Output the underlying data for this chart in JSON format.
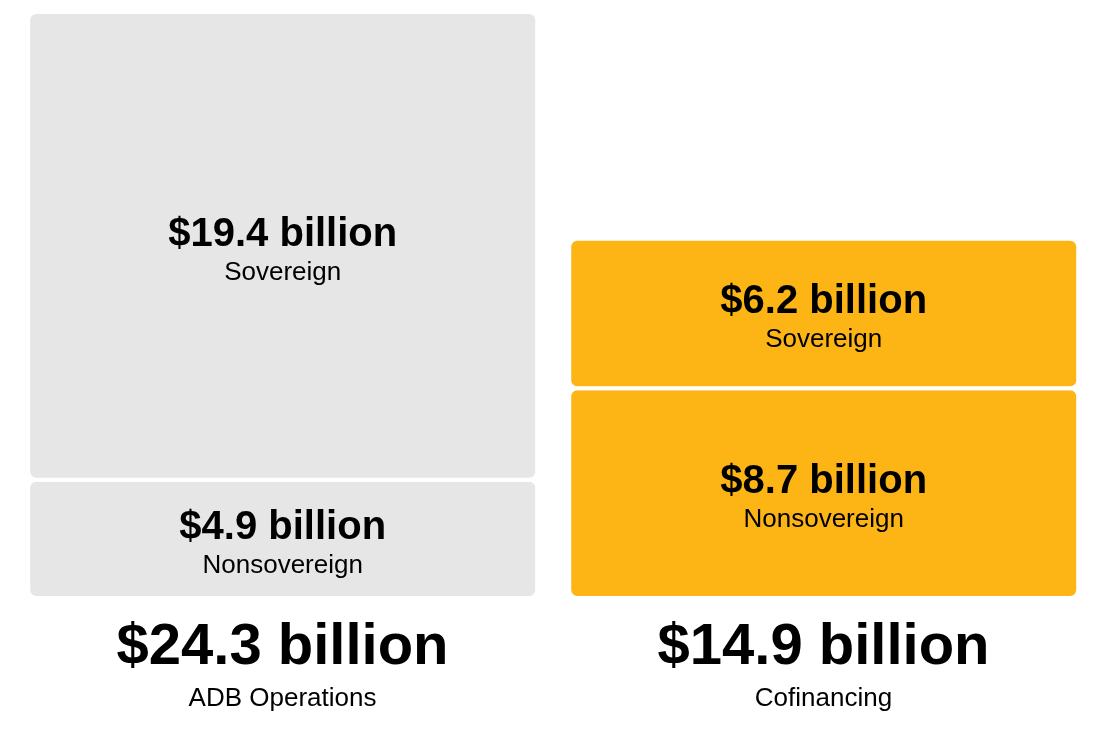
{
  "chart_data": {
    "type": "bar",
    "stacked": true,
    "categories": [
      "ADB Operations",
      "Cofinancing"
    ],
    "series": [
      {
        "name": "Nonsovereign",
        "colors": [
          "#e6e6e6",
          "#fdb515"
        ],
        "values": [
          4.9,
          8.7
        ],
        "value_labels": [
          "$4.9 billion",
          "$8.7 billion"
        ]
      },
      {
        "name": "Sovereign",
        "colors": [
          "#e6e6e6",
          "#fdb515"
        ],
        "values": [
          19.4,
          6.2
        ],
        "value_labels": [
          "$19.4 billion",
          "$6.2 billion"
        ]
      }
    ],
    "totals": [
      "$24.3 billion",
      "$14.9 billion"
    ]
  }
}
